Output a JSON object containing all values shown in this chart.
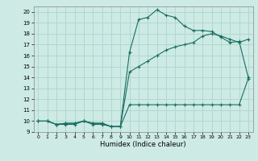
{
  "title": "",
  "xlabel": "Humidex (Indice chaleur)",
  "bg_color": "#cdeae4",
  "grid_color": "#b0d8d0",
  "line_color": "#1a6e62",
  "line1_x": [
    0,
    1,
    2,
    3,
    4,
    5,
    6,
    7,
    8,
    9,
    10,
    11,
    12,
    13,
    14,
    15,
    16,
    17,
    18,
    19,
    20,
    21,
    22,
    23
  ],
  "line1_y": [
    10.0,
    10.0,
    9.7,
    9.7,
    9.7,
    10.0,
    9.7,
    9.7,
    9.5,
    9.5,
    11.5,
    11.5,
    11.5,
    11.5,
    11.5,
    11.5,
    11.5,
    11.5,
    11.5,
    11.5,
    11.5,
    11.5,
    11.5,
    13.9
  ],
  "line2_x": [
    0,
    1,
    2,
    3,
    4,
    5,
    6,
    7,
    8,
    9,
    10,
    11,
    12,
    13,
    14,
    15,
    16,
    17,
    18,
    19,
    20,
    21,
    22,
    23
  ],
  "line2_y": [
    10.0,
    10.0,
    9.7,
    9.8,
    9.8,
    10.0,
    9.8,
    9.8,
    9.5,
    9.5,
    14.5,
    15.0,
    15.5,
    16.0,
    16.5,
    16.8,
    17.0,
    17.2,
    17.8,
    18.0,
    17.8,
    17.5,
    17.2,
    17.5
  ],
  "line3_x": [
    0,
    1,
    2,
    3,
    4,
    5,
    6,
    7,
    8,
    9,
    10,
    11,
    12,
    13,
    14,
    15,
    16,
    17,
    18,
    19,
    20,
    21,
    22,
    23
  ],
  "line3_y": [
    10.0,
    10.0,
    9.7,
    9.8,
    9.8,
    10.0,
    9.8,
    9.8,
    9.5,
    9.5,
    16.3,
    19.3,
    19.5,
    20.2,
    19.7,
    19.5,
    18.7,
    18.3,
    18.3,
    18.2,
    17.7,
    17.2,
    17.3,
    14.0
  ],
  "xlim": [
    -0.5,
    23.5
  ],
  "ylim": [
    9,
    20.5
  ],
  "yticks": [
    9,
    10,
    11,
    12,
    13,
    14,
    15,
    16,
    17,
    18,
    19,
    20
  ],
  "xticks": [
    0,
    1,
    2,
    3,
    4,
    5,
    6,
    7,
    8,
    9,
    10,
    11,
    12,
    13,
    14,
    15,
    16,
    17,
    18,
    19,
    20,
    21,
    22,
    23
  ]
}
